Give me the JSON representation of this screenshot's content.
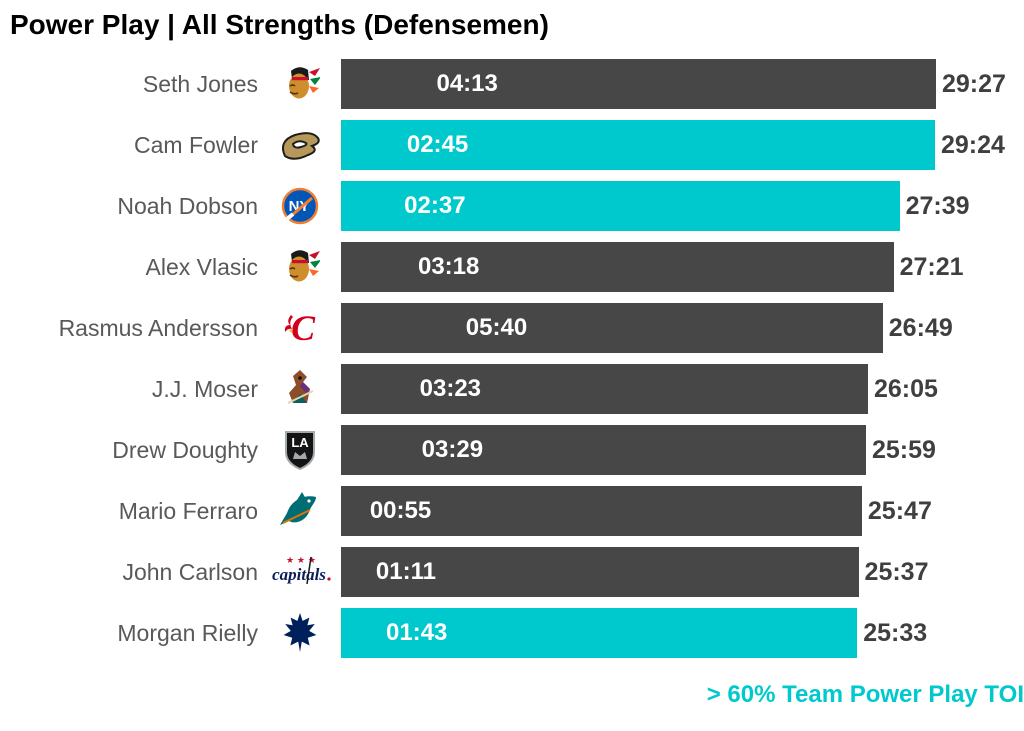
{
  "title": "Power Play | All Strengths (Defensemen)",
  "footer_note": "> 60% Team Power Play TOI",
  "colors": {
    "bar_default": "#474747",
    "bar_highlight": "#00C9CE",
    "name_text": "#595959",
    "value_text": "#3F3F3F",
    "in_bar_text": "#FFFFFF",
    "title_text": "#000000",
    "footer_text": "#00C9CE",
    "background": "#FFFFFF"
  },
  "chart_data": {
    "type": "bar",
    "orientation": "horizontal",
    "title": "Power Play | All Strengths (Defensemen)",
    "value_unit": "MM:SS (time on ice)",
    "x_min": "00:00",
    "x_max": "29:27",
    "grid": false,
    "legend": {
      "position": "bottom-right",
      "highlight_color_meaning": "> 60% Team Power Play TOI"
    },
    "in_bar_label_meaning": "Power Play TOI",
    "bar_end_label_meaning": "All Strengths TOI",
    "players": [
      {
        "name": "Seth Jones",
        "team": "Chicago Blackhawks",
        "logo": "blackhawks-logo",
        "pp_toi": "04:13",
        "total_toi": "29:27",
        "highlight": false
      },
      {
        "name": "Cam Fowler",
        "team": "Anaheim Ducks",
        "logo": "ducks-logo",
        "pp_toi": "02:45",
        "total_toi": "29:24",
        "highlight": true
      },
      {
        "name": "Noah Dobson",
        "team": "New York Islanders",
        "logo": "islanders-logo",
        "pp_toi": "02:37",
        "total_toi": "27:39",
        "highlight": true
      },
      {
        "name": "Alex Vlasic",
        "team": "Chicago Blackhawks",
        "logo": "blackhawks-logo",
        "pp_toi": "03:18",
        "total_toi": "27:21",
        "highlight": false
      },
      {
        "name": "Rasmus Andersson",
        "team": "Calgary Flames",
        "logo": "flames-logo",
        "pp_toi": "05:40",
        "total_toi": "26:49",
        "highlight": false
      },
      {
        "name": "J.J. Moser",
        "team": "Arizona Coyotes",
        "logo": "coyotes-logo",
        "pp_toi": "03:23",
        "total_toi": "26:05",
        "highlight": false
      },
      {
        "name": "Drew Doughty",
        "team": "Los Angeles Kings",
        "logo": "kings-logo",
        "pp_toi": "03:29",
        "total_toi": "25:59",
        "highlight": false
      },
      {
        "name": "Mario Ferraro",
        "team": "San Jose Sharks",
        "logo": "sharks-logo",
        "pp_toi": "00:55",
        "total_toi": "25:47",
        "highlight": false
      },
      {
        "name": "John Carlson",
        "team": "Washington Capitals",
        "logo": "capitals-logo",
        "pp_toi": "01:11",
        "total_toi": "25:37",
        "highlight": false
      },
      {
        "name": "Morgan Rielly",
        "team": "Toronto Maple Leafs",
        "logo": "maple-leafs-logo",
        "pp_toi": "01:43",
        "total_toi": "25:33",
        "highlight": true
      }
    ]
  }
}
